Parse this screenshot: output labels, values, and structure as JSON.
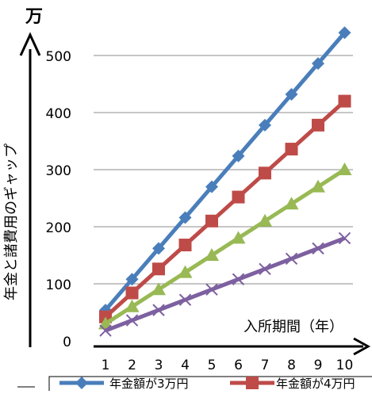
{
  "chart_data": {
    "type": "line",
    "unit_label": "万",
    "ylabel": "年金と諸費用のギャップ",
    "xlabel": "入所期間（年）",
    "categories": [
      "1",
      "2",
      "3",
      "4",
      "5",
      "6",
      "7",
      "8",
      "9",
      "10"
    ],
    "ylim": [
      0,
      540
    ],
    "yticks": [
      0,
      100,
      200,
      300,
      400,
      500
    ],
    "grid": true,
    "legend_position": "bottom",
    "series": [
      {
        "name": "年金額が3万円",
        "color": "#4a7ebb",
        "marker": "diamond",
        "values": [
          54,
          108,
          162,
          216,
          270,
          324,
          378,
          432,
          486,
          540
        ]
      },
      {
        "name": "年金額が4万円",
        "color": "#be4b48",
        "marker": "square",
        "values": [
          42,
          84,
          126,
          168,
          210,
          252,
          294,
          336,
          378,
          420
        ]
      },
      {
        "name": "",
        "color": "#98b954",
        "marker": "triangle",
        "values": [
          30,
          60,
          90,
          120,
          150,
          180,
          210,
          240,
          270,
          300
        ]
      },
      {
        "name": "",
        "color": "#7d60a0",
        "marker": "x",
        "values": [
          18,
          36,
          54,
          72,
          90,
          108,
          126,
          144,
          162,
          180
        ]
      }
    ]
  }
}
